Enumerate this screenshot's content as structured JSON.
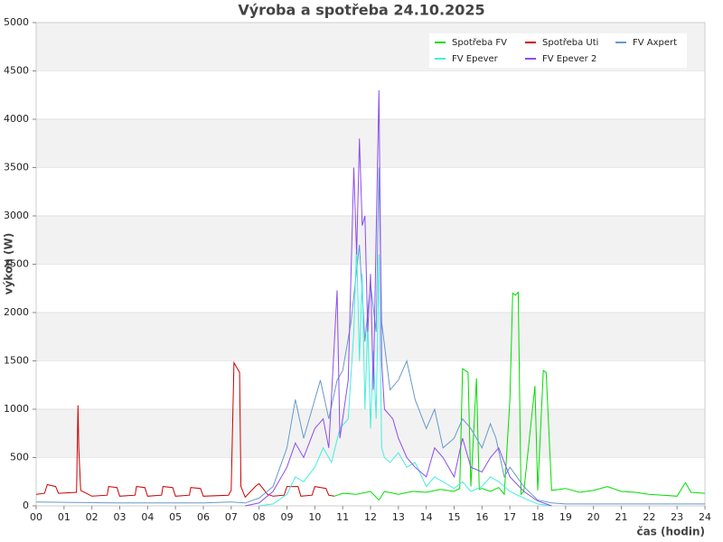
{
  "chart_data": {
    "type": "line",
    "title": "Výroba a spotřeba 24.10.2025",
    "x_label": "čas (hodin)",
    "y_label": "výkon (W)",
    "xlim": [
      0,
      24
    ],
    "xticks": [
      {
        "value": 0,
        "label": "00"
      },
      {
        "value": 1,
        "label": "01"
      },
      {
        "value": 2,
        "label": "02"
      },
      {
        "value": 3,
        "label": "03"
      },
      {
        "value": 4,
        "label": "04"
      },
      {
        "value": 5,
        "label": "05"
      },
      {
        "value": 6,
        "label": "06"
      },
      {
        "value": 7,
        "label": "07"
      },
      {
        "value": 8,
        "label": "08"
      },
      {
        "value": 9,
        "label": "09"
      },
      10,
      11,
      12,
      13,
      14,
      15,
      16,
      17,
      18,
      19,
      20,
      21,
      22,
      23,
      24
    ],
    "ylim": [
      0,
      5000
    ],
    "yticks": [
      0,
      500,
      1000,
      1500,
      2000,
      2500,
      3000,
      3500,
      4000,
      4500,
      5000
    ],
    "grid": true,
    "legend": "upper right",
    "series": [
      {
        "name": "Spotřeba FV",
        "color": "#00dd00",
        "x": [
          10.7,
          11,
          11.5,
          12,
          12.3,
          12.5,
          13,
          13.5,
          14,
          14.5,
          15,
          15.2,
          15.3,
          15.5,
          15.6,
          15.8,
          15.9,
          16,
          16.3,
          16.6,
          16.8,
          17,
          17.1,
          17.2,
          17.3,
          17.4,
          17.5,
          17.9,
          18,
          18.2,
          18.3,
          18.5,
          19,
          19.5,
          20,
          20.5,
          21,
          21.5,
          22,
          22.5,
          23,
          23.3,
          23.5,
          24
        ],
        "values": [
          100,
          130,
          120,
          150,
          60,
          150,
          120,
          150,
          140,
          170,
          150,
          180,
          1420,
          1380,
          200,
          1320,
          170,
          180,
          150,
          190,
          120,
          1100,
          2200,
          2180,
          2210,
          120,
          150,
          1240,
          160,
          1400,
          1380,
          160,
          180,
          140,
          160,
          200,
          150,
          140,
          120,
          110,
          100,
          240,
          140,
          130
        ]
      },
      {
        "name": "Spotřeba Uti",
        "color": "#cc0000",
        "x": [
          0,
          0.3,
          0.4,
          0.7,
          0.8,
          1.45,
          1.5,
          1.53,
          1.6,
          2,
          2.55,
          2.6,
          2.9,
          3,
          3.55,
          3.6,
          3.9,
          4,
          4.5,
          4.55,
          4.9,
          5,
          5.5,
          5.55,
          5.9,
          6,
          6.9,
          7.0,
          7.1,
          7.3,
          7.35,
          7.5,
          7.9,
          8.0,
          8.3,
          8.5,
          8.9,
          9.0,
          9.4,
          9.5,
          9.9,
          10.0,
          10.4,
          10.5,
          10.7
        ],
        "values": [
          120,
          130,
          220,
          200,
          130,
          140,
          1040,
          590,
          160,
          100,
          110,
          200,
          190,
          100,
          110,
          200,
          190,
          100,
          110,
          200,
          190,
          100,
          110,
          190,
          180,
          100,
          110,
          160,
          1480,
          1380,
          200,
          90,
          210,
          230,
          120,
          100,
          110,
          200,
          200,
          100,
          110,
          200,
          180,
          110,
          100
        ]
      },
      {
        "name": "FV Axpert",
        "color": "#6699cc",
        "x": [
          0,
          3,
          6,
          7,
          7.5,
          8,
          8.5,
          9,
          9.3,
          9.6,
          9.9,
          10.2,
          10.5,
          10.8,
          11,
          11.3,
          11.6,
          11.8,
          12,
          12.2,
          12.3,
          12.4,
          12.7,
          13,
          13.3,
          13.6,
          14,
          14.3,
          14.6,
          15,
          15.3,
          15.6,
          16,
          16.3,
          16.5,
          16.8,
          17,
          17.5,
          18,
          18.5,
          19,
          24
        ],
        "values": [
          40,
          30,
          30,
          40,
          30,
          80,
          200,
          600,
          1100,
          700,
          1000,
          1300,
          900,
          1300,
          1400,
          1900,
          2700,
          1700,
          2300,
          1800,
          3500,
          1900,
          1200,
          1300,
          1500,
          1100,
          800,
          1000,
          600,
          700,
          900,
          800,
          600,
          850,
          700,
          300,
          400,
          200,
          60,
          30,
          20,
          20
        ]
      },
      {
        "name": "FV Epever",
        "color": "#44eedd",
        "x": [
          8,
          8.5,
          9,
          9.3,
          9.6,
          10,
          10.3,
          10.6,
          10.9,
          11.2,
          11.4,
          11.5,
          11.6,
          11.7,
          11.8,
          11.9,
          12,
          12.1,
          12.2,
          12.3,
          12.4,
          12.5,
          12.7,
          13,
          13.3,
          13.6,
          14,
          14.3,
          14.6,
          15,
          15.3,
          15.6,
          16,
          16.3,
          16.6,
          17,
          17.5,
          18,
          18.5
        ],
        "values": [
          0,
          20,
          120,
          300,
          250,
          400,
          600,
          450,
          800,
          900,
          1800,
          2700,
          1500,
          2400,
          1000,
          1900,
          800,
          1600,
          900,
          2600,
          600,
          500,
          450,
          550,
          400,
          450,
          200,
          300,
          250,
          180,
          250,
          150,
          200,
          300,
          250,
          150,
          80,
          20,
          0
        ]
      },
      {
        "name": "FV Epever 2",
        "color": "#8c4dee",
        "x": [
          7.5,
          8,
          8.5,
          9,
          9.3,
          9.6,
          10,
          10.3,
          10.5,
          10.8,
          10.9,
          11.2,
          11.4,
          11.5,
          11.6,
          11.7,
          11.8,
          11.9,
          12,
          12.1,
          12.2,
          12.3,
          12.4,
          12.5,
          12.8,
          13,
          13.3,
          13.6,
          14,
          14.3,
          14.6,
          15,
          15.3,
          15.6,
          16,
          16.3,
          16.6,
          17,
          17.5,
          18,
          18.5
        ],
        "values": [
          0,
          30,
          150,
          400,
          650,
          500,
          800,
          900,
          600,
          2230,
          700,
          1300,
          3500,
          2600,
          3800,
          2900,
          3000,
          1800,
          2400,
          1200,
          2800,
          4300,
          1500,
          1000,
          900,
          700,
          500,
          400,
          300,
          600,
          500,
          300,
          700,
          400,
          350,
          500,
          600,
          300,
          150,
          50,
          0
        ]
      }
    ]
  }
}
